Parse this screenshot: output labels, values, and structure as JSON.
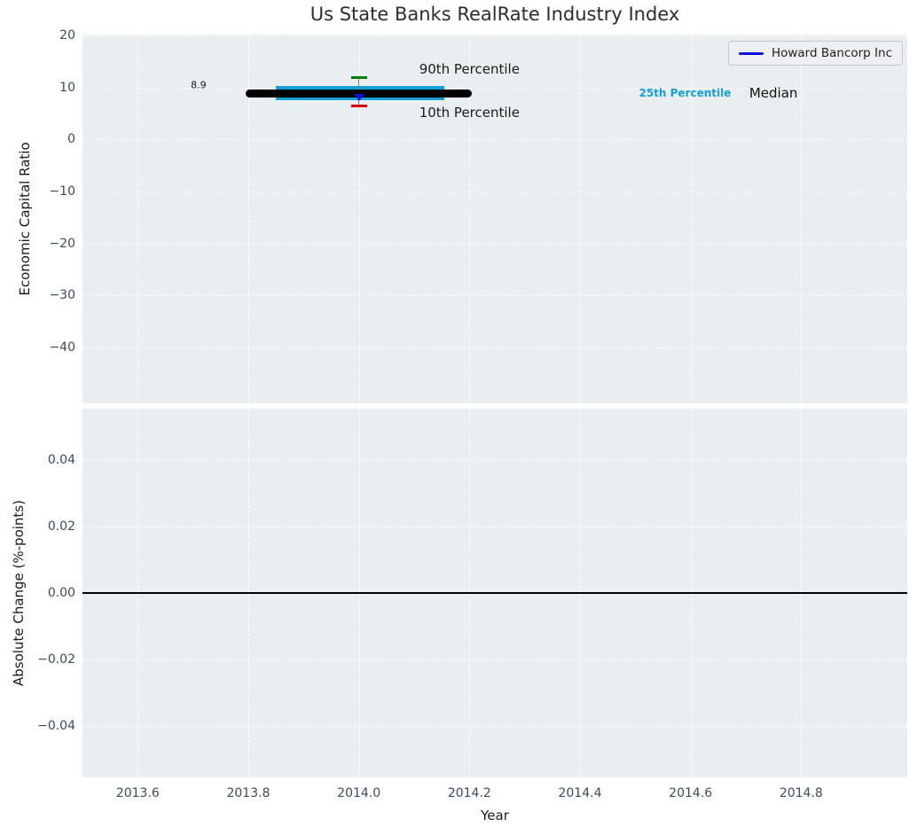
{
  "chart_data": [
    {
      "id": "economic-capital-ratio-panel",
      "type": "line",
      "title": "Us State Banks RealRate Industry Index",
      "xlabel": "Year",
      "ylabel": "Economic Capital Ratio",
      "xlim": [
        2013.5,
        2014.992
      ],
      "ylim": [
        -50.8,
        20.2
      ],
      "grid": true,
      "legend_position": "upper right",
      "legend": {
        "entries": [
          {
            "label": "Howard Bancorp Inc",
            "color": "#0f0fe0",
            "marker": "triangle-down"
          }
        ]
      },
      "xticks": [
        {
          "label": "2013.6",
          "value": 2013.6
        },
        {
          "label": "2013.8",
          "value": 2013.8
        },
        {
          "label": "2014.0",
          "value": 2014.0
        },
        {
          "label": "2014.2",
          "value": 2014.2
        },
        {
          "label": "2014.4",
          "value": 2014.4
        },
        {
          "label": "2014.6",
          "value": 2014.6
        },
        {
          "label": "2014.8",
          "value": 2014.8
        }
      ],
      "yticks": [
        {
          "label": "20",
          "value": 20
        },
        {
          "label": "10",
          "value": 10
        },
        {
          "label": "0",
          "value": 0
        },
        {
          "label": "−10",
          "value": -10
        },
        {
          "label": "−20",
          "value": -20
        },
        {
          "label": "−30",
          "value": -30
        },
        {
          "label": "−40",
          "value": -40
        }
      ],
      "industry_distribution": {
        "median": {
          "value": 8.9,
          "x_start": 2013.8,
          "x_end": 2014.2,
          "color": "#000000"
        },
        "percentile_band_25_75": {
          "low": 7.6,
          "high": 10.3,
          "x_start": 2013.85,
          "x_end": 2014.155,
          "color": "#15a0d8"
        },
        "percentile_90": {
          "value": 12.0,
          "x": 2014.0,
          "color": "#008000"
        },
        "percentile_10": {
          "value": 6.4,
          "x": 2014.0,
          "color": "#d40000"
        },
        "whisker_color": "#7f7f7f"
      },
      "company_point": {
        "name": "Howard Bancorp Inc",
        "x": 2014.0,
        "value": 8.9,
        "color": "#0f0fe0"
      },
      "annotations": [
        {
          "id": "company-value-label",
          "text": "8.9",
          "x": 2013.71,
          "y": 10.5,
          "color": "#1a1a1a",
          "size": 11,
          "bold": false
        },
        {
          "id": "p90-label",
          "text": "90th Percentile",
          "x": 2014.2,
          "y": 13.5,
          "color": "#1a1a1a",
          "size": 15,
          "bold": false
        },
        {
          "id": "p10-label",
          "text": "10th Percentile",
          "x": 2014.2,
          "y": 5.2,
          "color": "#1a1a1a",
          "size": 15,
          "bold": false
        },
        {
          "id": "p25-label",
          "text": "25th Percentile",
          "x": 2014.59,
          "y": 8.9,
          "color": "#15a0d8",
          "size": 12,
          "bold": true
        },
        {
          "id": "median-label",
          "text": "Median",
          "x": 2014.75,
          "y": 8.9,
          "color": "#111111",
          "size": 15,
          "bold": false
        }
      ]
    },
    {
      "id": "absolute-change-panel",
      "type": "line",
      "ylabel": "Absolute Change (%-points)",
      "xlim": [
        2013.5,
        2014.992
      ],
      "ylim": [
        -0.0555,
        0.0555
      ],
      "grid": true,
      "yticks": [
        {
          "label": "0.04",
          "value": 0.04
        },
        {
          "label": "0.02",
          "value": 0.02
        },
        {
          "label": "0.00",
          "value": 0.0
        },
        {
          "label": "−0.02",
          "value": -0.02
        },
        {
          "label": "−0.04",
          "value": -0.04
        }
      ],
      "zero_line": {
        "value": 0.0,
        "color": "#000000"
      },
      "series": []
    }
  ],
  "colors": {
    "plot_background": "#e9eef0",
    "gridline": "#ffffff",
    "tick_label": "#3c4b5e",
    "axis_label": "#1a1a1a"
  }
}
